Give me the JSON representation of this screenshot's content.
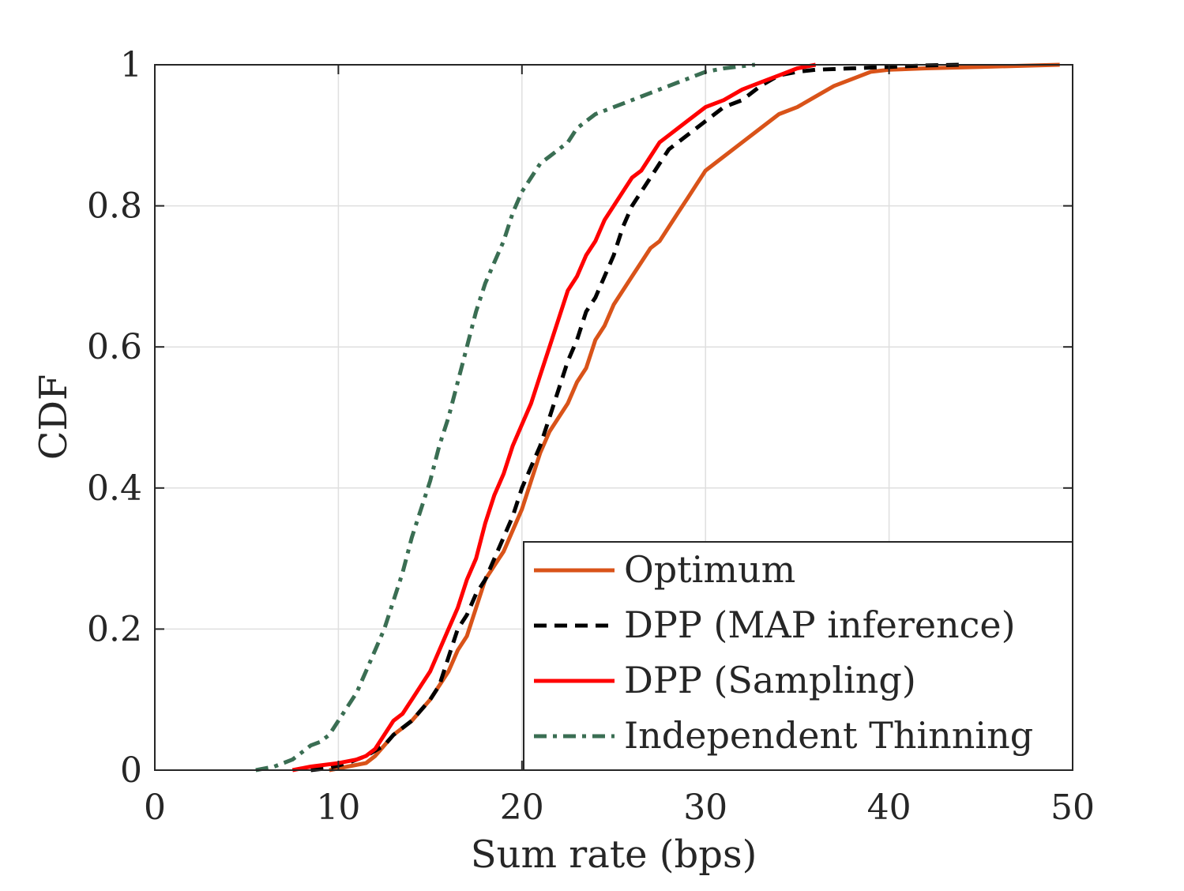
{
  "chart_data": {
    "type": "line",
    "title": "",
    "xlabel": "Sum rate (bps)",
    "ylabel": "CDF",
    "xlim": [
      0,
      50
    ],
    "ylim": [
      0,
      1
    ],
    "xticks": [
      0,
      10,
      20,
      30,
      40,
      50
    ],
    "yticks": [
      0,
      0.2,
      0.4,
      0.6,
      0.8,
      1
    ],
    "xtick_labels": [
      "0",
      "10",
      "20",
      "30",
      "40",
      "50"
    ],
    "ytick_labels": [
      "0",
      "0.2",
      "0.4",
      "0.6",
      "0.8",
      "1"
    ],
    "grid": true,
    "legend_position": "bottom-right",
    "series": [
      {
        "name": "Optimum",
        "color": "#d95319",
        "dash": "solid",
        "x": [
          9.5,
          10.5,
          11.5,
          12,
          12.5,
          13,
          14,
          15,
          16,
          16.5,
          17,
          17.5,
          18,
          18.5,
          19,
          19.5,
          20,
          20.5,
          21,
          21.5,
          22,
          22.5,
          23,
          23.5,
          24,
          24.5,
          25,
          25.5,
          26,
          26.5,
          27,
          27.5,
          28,
          28.5,
          29,
          29.5,
          30,
          31,
          32,
          33,
          34,
          35,
          36,
          37,
          38,
          39,
          40,
          42,
          45,
          49.3
        ],
        "y": [
          0.0,
          0.005,
          0.01,
          0.02,
          0.035,
          0.05,
          0.07,
          0.1,
          0.14,
          0.17,
          0.19,
          0.23,
          0.27,
          0.29,
          0.31,
          0.34,
          0.37,
          0.41,
          0.45,
          0.48,
          0.5,
          0.52,
          0.55,
          0.57,
          0.61,
          0.63,
          0.66,
          0.68,
          0.7,
          0.72,
          0.74,
          0.75,
          0.77,
          0.79,
          0.81,
          0.83,
          0.85,
          0.87,
          0.89,
          0.91,
          0.93,
          0.94,
          0.955,
          0.97,
          0.98,
          0.99,
          0.993,
          0.995,
          0.997,
          1.0
        ]
      },
      {
        "name": "DPP (MAP inference)",
        "color": "#000000",
        "dash": "dashed",
        "x": [
          8.5,
          9.5,
          10.5,
          11.5,
          12.5,
          13,
          14,
          15,
          15.5,
          16,
          16.5,
          17,
          17.5,
          18,
          18.5,
          19,
          19.5,
          20,
          20.5,
          21,
          21.5,
          22,
          22.5,
          23,
          23.5,
          24,
          24.5,
          25,
          25.5,
          26,
          26.5,
          27,
          27.5,
          28,
          28.5,
          29,
          30,
          31,
          32,
          33,
          34,
          35,
          36,
          38,
          40,
          42,
          43.8
        ],
        "y": [
          0.0,
          0.003,
          0.01,
          0.02,
          0.035,
          0.05,
          0.07,
          0.1,
          0.12,
          0.16,
          0.2,
          0.22,
          0.25,
          0.27,
          0.3,
          0.33,
          0.36,
          0.4,
          0.43,
          0.46,
          0.5,
          0.54,
          0.58,
          0.61,
          0.65,
          0.67,
          0.7,
          0.73,
          0.77,
          0.8,
          0.82,
          0.84,
          0.86,
          0.88,
          0.89,
          0.9,
          0.92,
          0.94,
          0.95,
          0.97,
          0.985,
          0.99,
          0.993,
          0.995,
          0.997,
          0.999,
          1.0
        ]
      },
      {
        "name": "DPP (Sampling)",
        "color": "#ff0000",
        "dash": "solid",
        "x": [
          7.5,
          8.5,
          10,
          11,
          11.5,
          12,
          12.5,
          13,
          13.5,
          14,
          14.5,
          15,
          15.5,
          16,
          16.5,
          17,
          17.5,
          18,
          18.5,
          19,
          19.5,
          20,
          20.5,
          21,
          21.5,
          22,
          22.5,
          23,
          23.5,
          24,
          24.5,
          25,
          25.5,
          26,
          26.5,
          27,
          27.5,
          28,
          28.5,
          29,
          29.5,
          30,
          31,
          32,
          33,
          34,
          35,
          36
        ],
        "y": [
          0.0,
          0.005,
          0.01,
          0.015,
          0.02,
          0.03,
          0.05,
          0.07,
          0.08,
          0.1,
          0.12,
          0.14,
          0.17,
          0.2,
          0.23,
          0.27,
          0.3,
          0.35,
          0.39,
          0.42,
          0.46,
          0.49,
          0.52,
          0.56,
          0.6,
          0.64,
          0.68,
          0.7,
          0.73,
          0.75,
          0.78,
          0.8,
          0.82,
          0.84,
          0.85,
          0.87,
          0.89,
          0.9,
          0.91,
          0.92,
          0.93,
          0.94,
          0.95,
          0.965,
          0.975,
          0.985,
          0.995,
          1.0
        ]
      },
      {
        "name": "Independent Thinning",
        "color": "#3a6e53",
        "dash": "dashdot",
        "x": [
          5.5,
          6.5,
          7.5,
          8,
          8.5,
          9,
          9.5,
          10,
          10.5,
          11,
          11.5,
          12,
          12.5,
          13,
          13.5,
          14,
          14.5,
          15,
          15.5,
          16,
          16.5,
          17,
          17.5,
          18,
          18.5,
          19,
          19.5,
          20,
          20.5,
          21,
          21.5,
          22,
          22.5,
          23,
          23.5,
          24,
          25,
          26,
          27,
          28,
          29,
          30,
          31,
          32,
          32.7
        ],
        "y": [
          0.0,
          0.005,
          0.015,
          0.025,
          0.035,
          0.04,
          0.05,
          0.07,
          0.09,
          0.11,
          0.14,
          0.17,
          0.2,
          0.24,
          0.28,
          0.33,
          0.37,
          0.41,
          0.46,
          0.5,
          0.55,
          0.6,
          0.65,
          0.69,
          0.72,
          0.75,
          0.79,
          0.82,
          0.84,
          0.86,
          0.87,
          0.88,
          0.89,
          0.91,
          0.92,
          0.93,
          0.94,
          0.95,
          0.96,
          0.97,
          0.98,
          0.99,
          0.995,
          0.998,
          1.0
        ]
      }
    ]
  }
}
